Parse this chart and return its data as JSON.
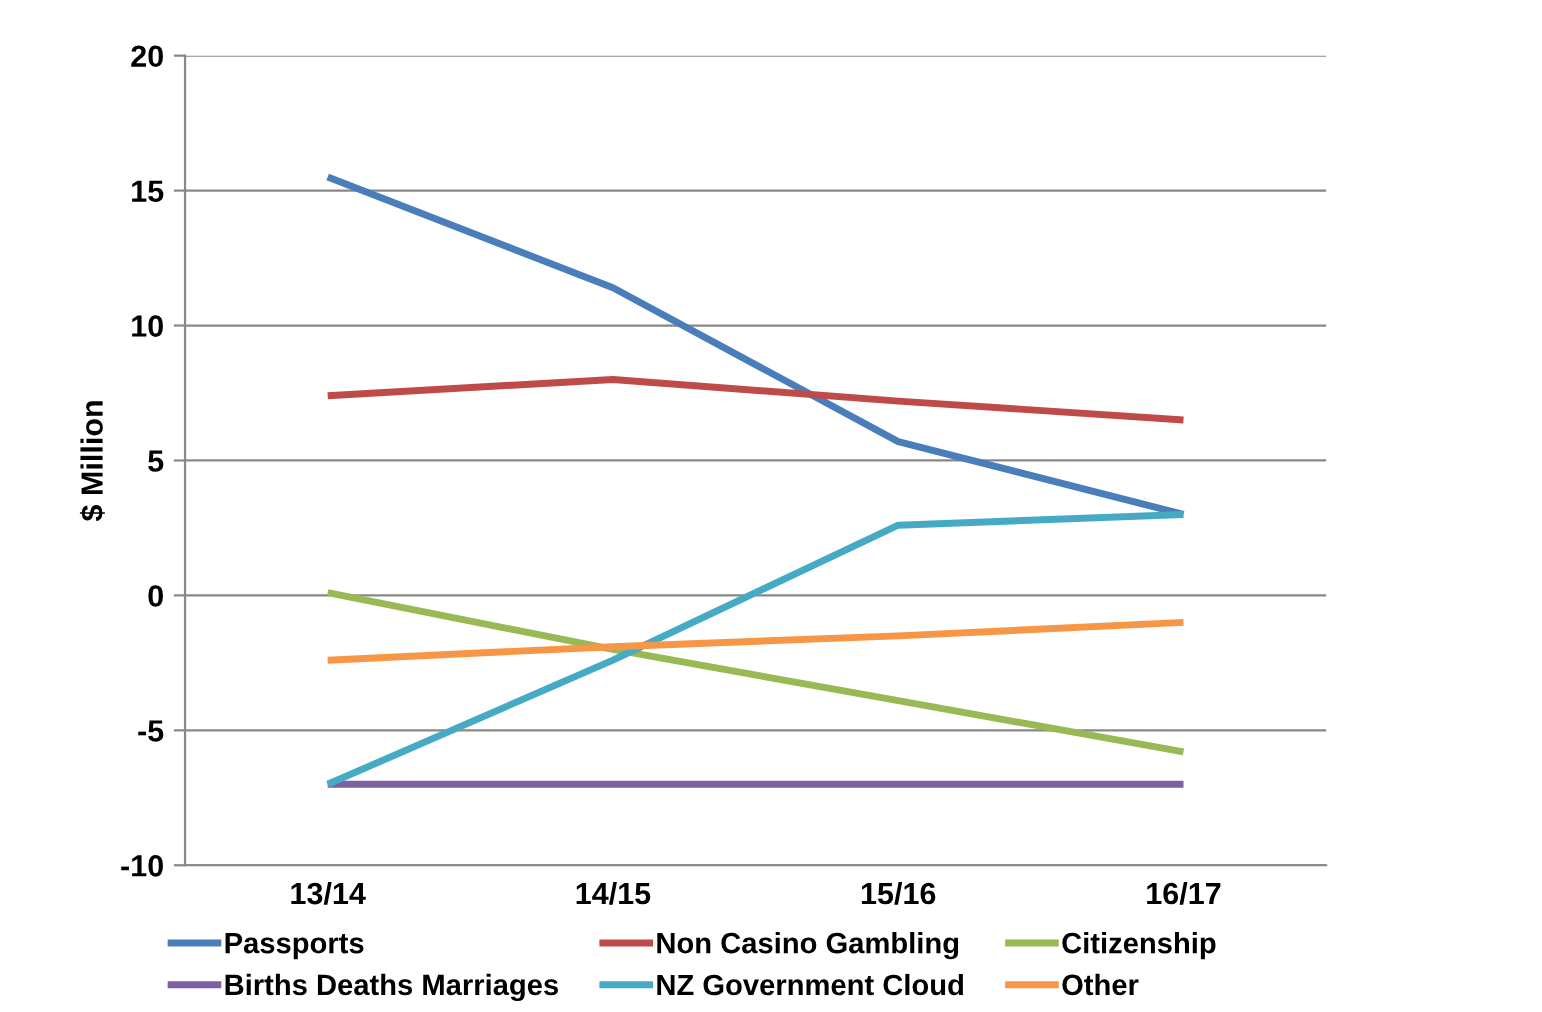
{
  "chart_data": {
    "type": "line",
    "ylabel": "$ Million",
    "categories": [
      "13/14",
      "14/15",
      "15/16",
      "16/17"
    ],
    "ylim": [
      -10,
      20
    ],
    "yticks": [
      -10,
      -5,
      0,
      5,
      10,
      15,
      20
    ],
    "grid": "y",
    "legend": "bottom",
    "marker": "none",
    "line_style": "solid",
    "series": [
      {
        "name": "Passports",
        "color": "#4a7ebb",
        "values": [
          15.5,
          11.4,
          5.7,
          3.0
        ]
      },
      {
        "name": "Non Casino Gambling",
        "color": "#be4b48",
        "values": [
          7.4,
          8.0,
          7.2,
          6.5
        ]
      },
      {
        "name": "Citizenship",
        "color": "#98b954",
        "values": [
          0.1,
          -2.0,
          -3.9,
          -5.8
        ]
      },
      {
        "name": "Births Deaths Marriages",
        "color": "#7d60a0",
        "values": [
          -7.0,
          -7.0,
          -7.0,
          -7.0
        ]
      },
      {
        "name": "NZ Government Cloud",
        "color": "#46aac5",
        "values": [
          -7.0,
          -2.4,
          2.6,
          3.0
        ]
      },
      {
        "name": "Other",
        "color": "#f79646",
        "values": [
          -2.4,
          -1.9,
          -1.5,
          -1.0
        ]
      }
    ]
  }
}
